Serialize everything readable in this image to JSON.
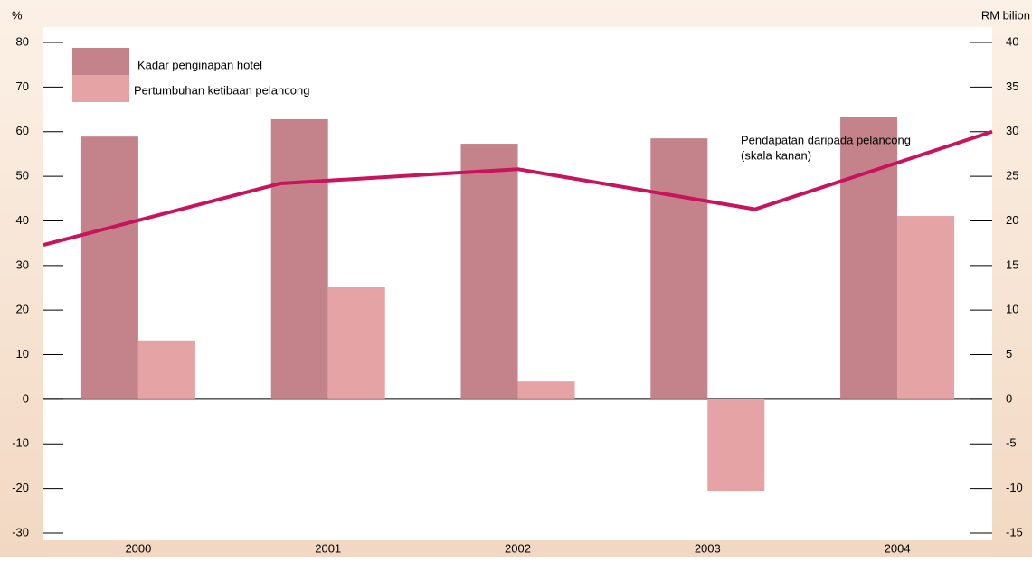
{
  "chart_data": {
    "type": "bar",
    "y_label": "%",
    "y2_label": "RM bilion",
    "categories": [
      "2000",
      "2001",
      "2002",
      "2003",
      "2004"
    ],
    "series": [
      {
        "name": "Kadar penginapan hotel",
        "color": "#c4838a",
        "type": "bar",
        "values": [
          58.9,
          62.8,
          57.3,
          58.5,
          63.2
        ]
      },
      {
        "name": "Pertumbuhan ketibaan pelancong",
        "color": "#e5a3a5",
        "type": "bar",
        "values": [
          13.2,
          25.1,
          4.0,
          -20.5,
          41.1
        ]
      },
      {
        "name": "Pendapatan daripada pelancong",
        "color": "#c8145c",
        "type": "line",
        "axis": "y2",
        "values": [
          17.3,
          24.2,
          25.8,
          21.3,
          30.0
        ]
      }
    ],
    "annotations": [
      "(skala kanan)"
    ],
    "ylim": [
      -30,
      80
    ],
    "yticks": [
      -30,
      -20,
      -10,
      0,
      10,
      20,
      30,
      40,
      50,
      60,
      70,
      80
    ],
    "y2lim": [
      -15,
      40
    ],
    "y2ticks": [
      -15,
      -10,
      -5,
      0,
      5,
      10,
      15,
      20,
      25,
      30,
      35,
      40
    ],
    "legend": "upper left"
  }
}
